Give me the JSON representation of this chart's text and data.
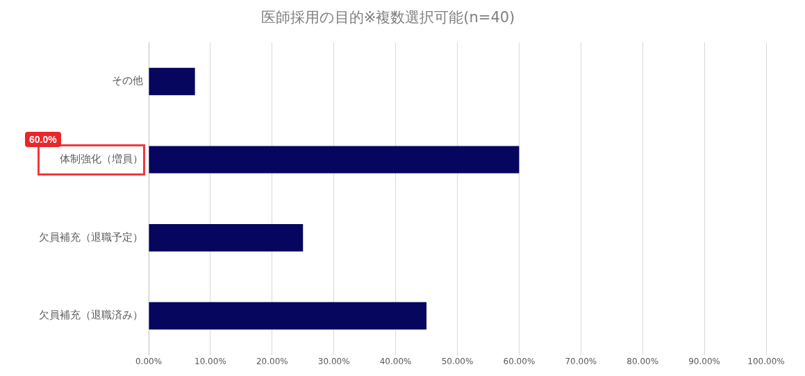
{
  "chart_data": {
    "type": "bar",
    "orientation": "horizontal",
    "title": "医師採用の目的※複数選択可能(n=40)",
    "categories": [
      "その他",
      "体制強化（増員）",
      "欠員補充（退職予定）",
      "欠員補充（退職済み）"
    ],
    "values": [
      7.5,
      60,
      25,
      45
    ],
    "color": "#06065f",
    "xlim": [
      0,
      100
    ],
    "xticks": [
      {
        "value": 0,
        "label": "0.00%"
      },
      {
        "value": 10,
        "label": "10.00%"
      },
      {
        "value": 20,
        "label": "20.00%"
      },
      {
        "value": 30,
        "label": "30.00%"
      },
      {
        "value": 40,
        "label": "40.00%"
      },
      {
        "value": 50,
        "label": "50.00%"
      },
      {
        "value": 60,
        "label": "60.00%"
      },
      {
        "value": 70,
        "label": "70.00%"
      },
      {
        "value": 80,
        "label": "80.00%"
      },
      {
        "value": 90,
        "label": "90.00%"
      },
      {
        "value": 100,
        "label": "100.00%"
      }
    ],
    "grid": "x",
    "legend": false,
    "annotations": [
      "60.0%"
    ]
  }
}
